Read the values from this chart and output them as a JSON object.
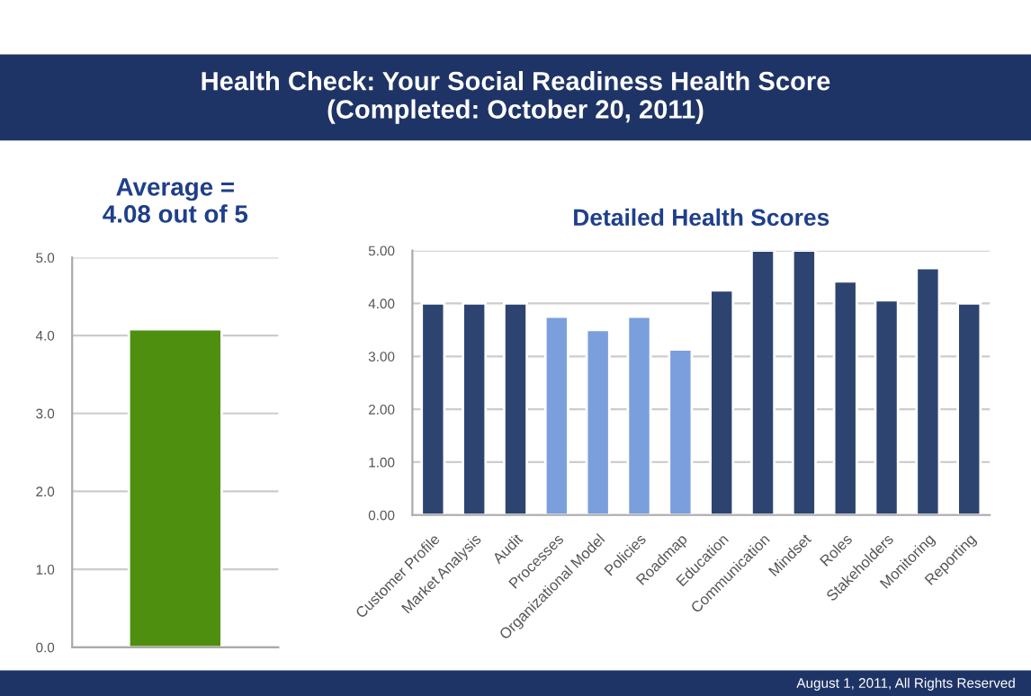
{
  "chart_data": [
    {
      "type": "bar",
      "title": "Health Check: Your Social Readiness Health Score\n(Completed: October 20, 2011)",
      "subtitle": "Average =\n4.08 out of 5",
      "categories": [
        null
      ],
      "values": [
        4.08
      ],
      "colors": [
        "#4e8f0f"
      ],
      "ylim": [
        0,
        5
      ],
      "yticks": [
        {
          "value": 0,
          "label": "0.0"
        },
        {
          "value": 1,
          "label": "1.0"
        },
        {
          "value": 2,
          "label": "2.0"
        },
        {
          "value": 3,
          "label": "3.0"
        },
        {
          "value": 4,
          "label": "4.0"
        },
        {
          "value": 5,
          "label": "5.0"
        }
      ],
      "grid": "y"
    },
    {
      "type": "bar",
      "title": "Detailed Health Scores",
      "categories": [
        "Customer Profile",
        "Market Analysis",
        "Audit",
        "Processes",
        "Organizational Model",
        "Policies",
        "Roadmap",
        "Education",
        "Communication",
        "Mindset",
        "Roles",
        "Stakeholders",
        "Monitoring",
        "Reporting"
      ],
      "values": [
        4.0,
        4.0,
        4.0,
        3.75,
        3.5,
        3.75,
        3.13,
        4.25,
        5.0,
        5.0,
        4.42,
        4.06,
        4.67,
        4.0
      ],
      "colors": [
        "#2e4470",
        "#2e4470",
        "#2e4470",
        "#7b9fdc",
        "#7b9fdc",
        "#7b9fdc",
        "#7b9fdc",
        "#2e4470",
        "#2e4470",
        "#2e4470",
        "#2e4470",
        "#2e4470",
        "#2e4470",
        "#2e4470"
      ],
      "ylim": [
        0,
        5
      ],
      "yticks": [
        {
          "value": 0,
          "label": "0.00"
        },
        {
          "value": 1,
          "label": "1.00"
        },
        {
          "value": 2,
          "label": "2.00"
        },
        {
          "value": 3,
          "label": "3.00"
        },
        {
          "value": 4,
          "label": "4.00"
        },
        {
          "value": 5,
          "label": "5.00"
        }
      ],
      "grid": "y",
      "annotations": [
        "August 1, 2011, All Rights Reserved"
      ]
    }
  ]
}
